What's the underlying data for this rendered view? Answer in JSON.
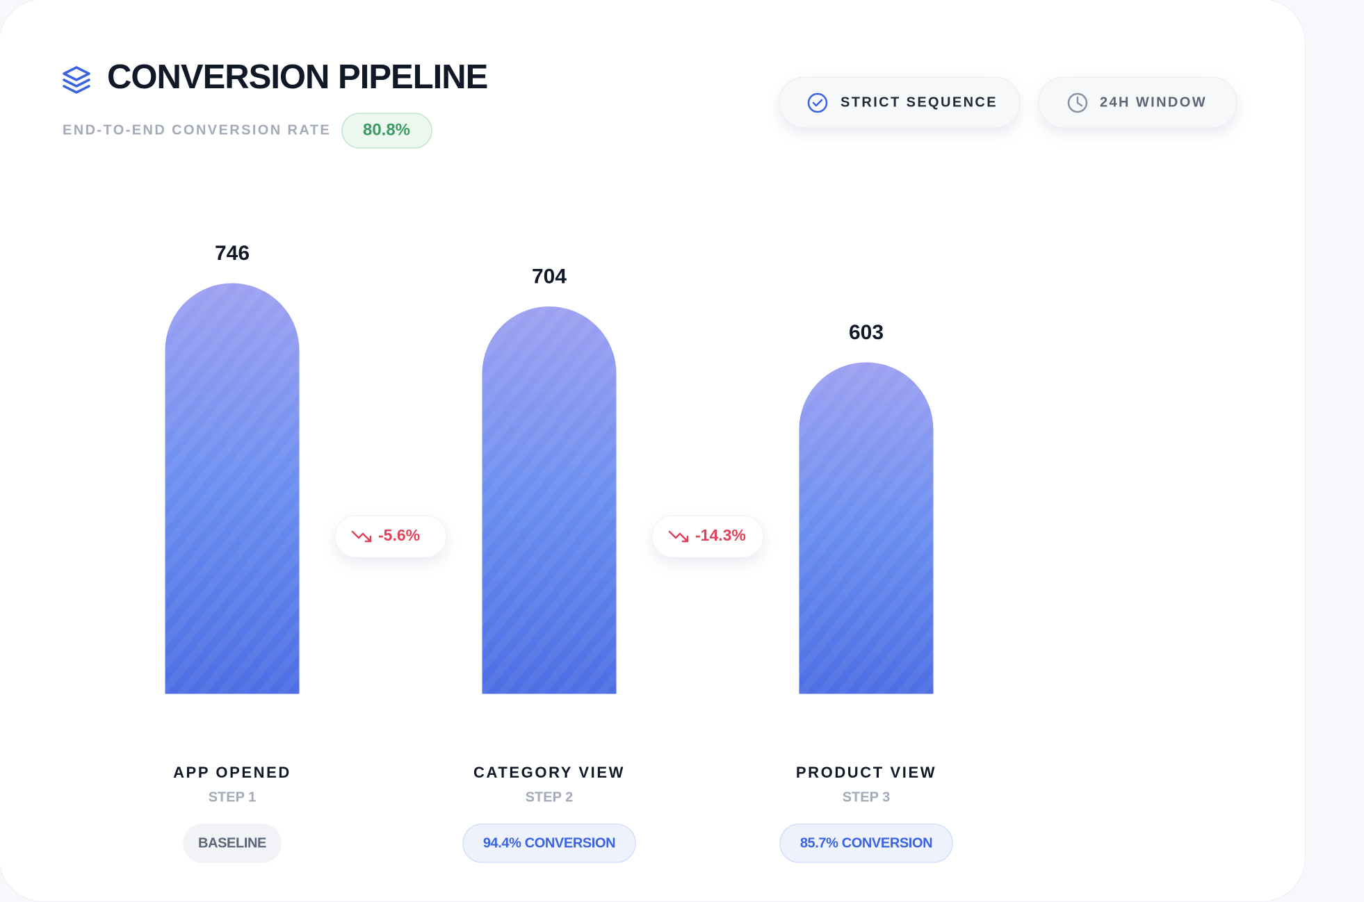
{
  "chart_data": {
    "type": "bar",
    "title": "CONVERSION PIPELINE",
    "rate_label": "END-TO-END CONVERSION RATE",
    "rate": "80.8%",
    "badges": [
      "STRICT SEQUENCE",
      "24H WINDOW"
    ],
    "categories": [
      "APP OPENED",
      "CATEGORY VIEW",
      "PRODUCT VIEW"
    ],
    "steps": [
      "STEP 1",
      "STEP 2",
      "STEP 3"
    ],
    "values": [
      746,
      704,
      603
    ],
    "drops": [
      "-5.6%",
      "-14.3%"
    ],
    "conversions": [
      "BASELINE",
      "94.4% CONVERSION",
      "85.7% CONVERSION"
    ]
  }
}
